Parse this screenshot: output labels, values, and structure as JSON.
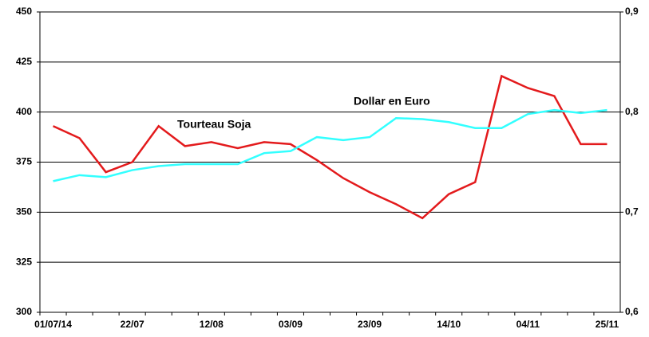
{
  "chart_data": {
    "type": "line",
    "categories": [
      "01/07/14",
      null,
      null,
      "22/07",
      null,
      null,
      "12/08",
      null,
      null,
      "03/09",
      null,
      null,
      "23/09",
      null,
      null,
      "14/10",
      null,
      null,
      "04/11",
      null,
      null,
      "25/11"
    ],
    "series": [
      {
        "name": "Tourteau Soja",
        "color": "#e31a1c",
        "values": [
          393,
          387,
          370,
          375,
          393,
          383,
          385,
          382,
          385,
          384,
          376,
          367,
          360,
          354,
          347,
          359,
          365,
          418,
          412,
          408,
          384,
          384
        ]
      },
      {
        "name": "Dollar en Euro",
        "color": "#33ffff",
        "axis": "y2",
        "values": [
          0.731,
          0.737,
          0.735,
          0.742,
          0.746,
          0.748,
          0.748,
          0.748,
          0.759,
          0.761,
          0.775,
          0.772,
          0.775,
          0.794,
          0.793,
          0.79,
          0.784,
          0.784,
          0.798,
          0.802,
          0.799,
          0.802
        ]
      }
    ],
    "ylim": [
      300,
      450
    ],
    "yticks": [
      300,
      325,
      350,
      375,
      400,
      425,
      450
    ],
    "y2lim": [
      0.6,
      0.9
    ],
    "y2ticks": [
      {
        "value": 0.6,
        "label": "0,6"
      },
      {
        "value": 0.7,
        "label": "0,7"
      },
      {
        "value": 0.8,
        "label": "0,8"
      },
      {
        "value": 0.9,
        "label": "0,9"
      }
    ],
    "grid": true
  }
}
